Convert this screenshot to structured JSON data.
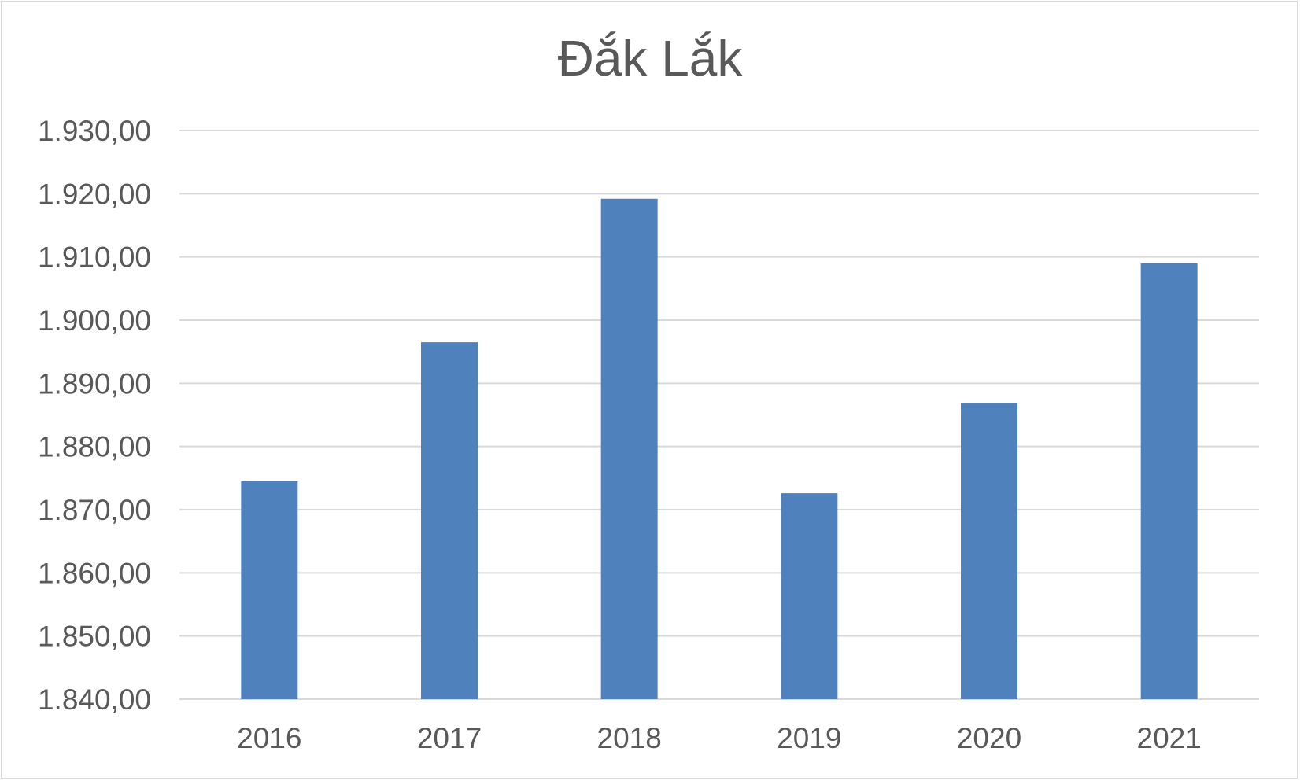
{
  "chart_data": {
    "type": "bar",
    "title": "Đắk Lắk",
    "xlabel": "",
    "ylabel": "",
    "categories": [
      "2016",
      "2017",
      "2018",
      "2019",
      "2020",
      "2021"
    ],
    "values": [
      1874.5,
      1896.5,
      1919.2,
      1872.6,
      1886.9,
      1909.0
    ],
    "ylim": [
      1840,
      1930
    ],
    "ytick_step": 10,
    "ytick_labels": [
      "1.840,00",
      "1.850,00",
      "1.860,00",
      "1.870,00",
      "1.880,00",
      "1.890,00",
      "1.900,00",
      "1.910,00",
      "1.920,00",
      "1.930,00"
    ],
    "grid": true,
    "legend": "none",
    "bar_color": "#4f81bd",
    "grid_color": "#d9d9d9"
  }
}
